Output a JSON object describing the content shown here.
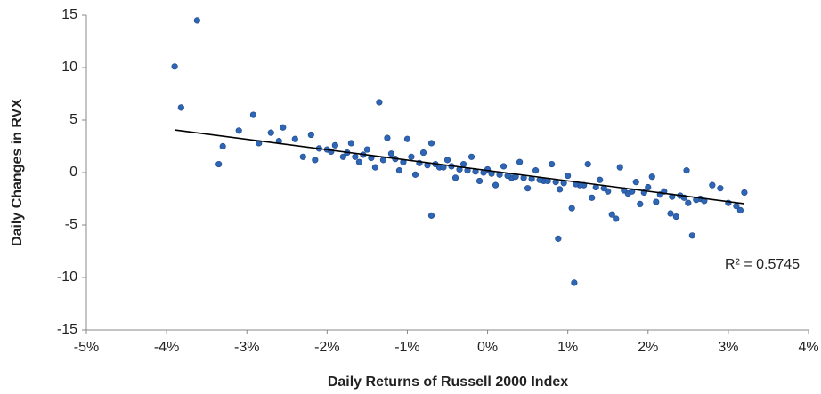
{
  "chart_data": {
    "type": "scatter",
    "x_label": "Daily Returns of Russell 2000 Index",
    "y_label": "Daily Changes in RVX",
    "color": "#2f65b5",
    "trendline_color": "#000000",
    "annotation": "R² = 0.5745",
    "xlim": [
      -5,
      4
    ],
    "ylim": [
      -15,
      15
    ],
    "xticks": [
      {
        "value": -5,
        "label": "-5%"
      },
      {
        "value": -4,
        "label": "-4%"
      },
      {
        "value": -3,
        "label": "-3%"
      },
      {
        "value": -2,
        "label": "-2%"
      },
      {
        "value": -1,
        "label": "-1%"
      },
      {
        "value": 0,
        "label": "0%"
      },
      {
        "value": 1,
        "label": "1%"
      },
      {
        "value": 2,
        "label": "2%"
      },
      {
        "value": 3,
        "label": "3%"
      },
      {
        "value": 4,
        "label": "4%"
      }
    ],
    "yticks": [
      -15,
      -10,
      -5,
      0,
      5,
      10,
      15
    ],
    "trendline": {
      "x": [
        -3.9,
        3.2
      ],
      "y": [
        4.06,
        -2.97
      ]
    },
    "x": [
      -3.9,
      -3.62,
      -3.82,
      -3.35,
      -3.3,
      -3.1,
      -2.92,
      -2.85,
      -2.7,
      -2.6,
      -2.55,
      -2.4,
      -2.3,
      -2.2,
      -2.15,
      -2.0,
      -1.9,
      -1.8,
      -1.7,
      -1.6,
      -1.5,
      -1.4,
      -1.35,
      -1.25,
      -1.2,
      -1.1,
      -1.0,
      -0.95,
      -0.9,
      -0.8,
      -0.7,
      -0.7,
      -0.6,
      -0.5,
      -0.4,
      -0.3,
      -0.2,
      -0.1,
      0.0,
      0.1,
      0.2,
      0.3,
      0.4,
      0.5,
      0.6,
      0.7,
      0.8,
      0.88,
      0.9,
      1.0,
      1.05,
      1.08,
      1.15,
      1.25,
      1.3,
      1.4,
      1.5,
      1.55,
      1.6,
      1.65,
      1.75,
      1.85,
      1.9,
      2.0,
      2.05,
      2.1,
      2.2,
      2.28,
      2.35,
      2.4,
      2.48,
      2.5,
      2.55,
      2.65,
      2.8,
      2.9,
      3.1,
      3.15,
      3.2,
      -2.1,
      -1.95,
      -1.75,
      -1.65,
      -1.55,
      -1.45,
      -1.3,
      -1.15,
      -1.05,
      -0.85,
      -0.75,
      -0.65,
      -0.55,
      -0.45,
      -0.35,
      -0.25,
      -0.15,
      -0.05,
      0.05,
      0.15,
      0.25,
      0.35,
      0.45,
      0.55,
      0.65,
      0.75,
      0.85,
      0.95,
      1.1,
      1.2,
      1.35,
      1.45,
      1.7,
      1.8,
      1.95,
      2.15,
      2.3,
      2.45,
      2.6,
      2.7,
      3.0
    ],
    "y": [
      10.1,
      14.5,
      6.2,
      0.8,
      2.5,
      4.0,
      5.5,
      2.8,
      3.8,
      3.0,
      4.3,
      3.2,
      1.5,
      3.6,
      1.2,
      2.2,
      2.6,
      1.5,
      2.8,
      1.0,
      2.2,
      0.5,
      6.7,
      3.3,
      1.8,
      0.2,
      3.2,
      1.5,
      -0.2,
      1.9,
      2.8,
      -4.1,
      0.5,
      1.2,
      -0.5,
      0.8,
      1.5,
      -0.8,
      0.3,
      -1.2,
      0.6,
      -0.5,
      1.0,
      -1.5,
      0.2,
      -0.8,
      0.8,
      -6.3,
      -1.6,
      -0.3,
      -3.4,
      -10.5,
      -1.2,
      0.8,
      -2.4,
      -0.7,
      -1.8,
      -4.0,
      -4.4,
      0.5,
      -2.0,
      -0.9,
      -3.0,
      -1.4,
      -0.4,
      -2.8,
      -1.8,
      -3.9,
      -4.2,
      -2.2,
      0.2,
      -2.9,
      -6.0,
      -2.5,
      -1.2,
      -1.5,
      -3.2,
      -3.6,
      -1.9,
      2.3,
      2.0,
      1.9,
      1.5,
      1.7,
      1.4,
      1.2,
      1.3,
      1.0,
      0.9,
      0.7,
      0.8,
      0.5,
      0.6,
      0.3,
      0.2,
      0.1,
      0.0,
      -0.1,
      -0.2,
      -0.3,
      -0.4,
      -0.5,
      -0.6,
      -0.7,
      -0.8,
      -0.9,
      -1.0,
      -1.1,
      -1.2,
      -1.4,
      -1.5,
      -1.7,
      -1.8,
      -1.9,
      -2.1,
      -2.3,
      -2.4,
      -2.6,
      -2.7,
      -2.9
    ]
  }
}
